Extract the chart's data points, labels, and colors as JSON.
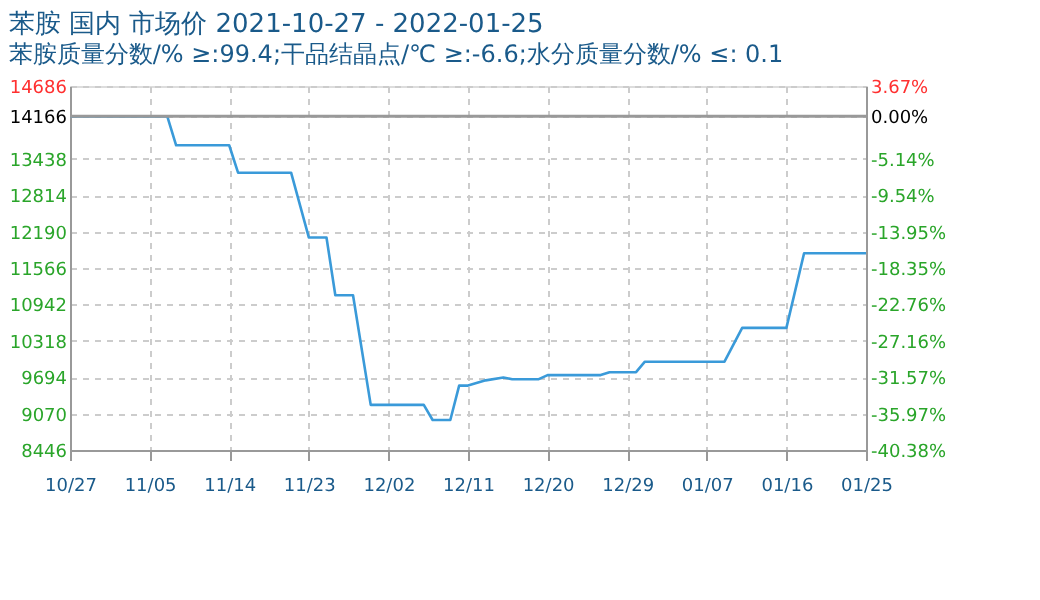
{
  "chart_data": {
    "type": "line",
    "title": "苯胺 国内 市场价 2021-10-27 - 2022-01-25",
    "subtitle": "苯胺质量分数/% ≥:99.4;干品结晶点/℃  ≥:-6.6;水分质量分数/%  ≤: 0.1",
    "x": [
      "2021-10-27",
      "2021-11-07",
      "2021-11-08",
      "2021-11-14",
      "2021-11-15",
      "2021-11-21",
      "2021-11-23",
      "2021-11-25",
      "2021-11-26",
      "2021-11-28",
      "2021-11-30",
      "2021-12-06",
      "2021-12-07",
      "2021-12-09",
      "2021-12-10",
      "2021-12-11",
      "2021-12-13",
      "2021-12-15",
      "2021-12-16",
      "2021-12-19",
      "2021-12-20",
      "2021-12-26",
      "2021-12-27",
      "2021-12-30",
      "2021-12-31",
      "2022-01-09",
      "2022-01-11",
      "2022-01-16",
      "2022-01-18",
      "2022-01-25"
    ],
    "series": [
      {
        "color": "#3a9ad9",
        "values": [
          14166,
          14166,
          13670,
          13670,
          13200,
          13200,
          12090,
          12090,
          11100,
          11100,
          9220,
          9220,
          8960,
          8960,
          9550,
          9550,
          9640,
          9690,
          9660,
          9660,
          9730,
          9730,
          9780,
          9780,
          9960,
          9960,
          10540,
          10540,
          11820,
          11820
        ]
      }
    ],
    "xlim": [
      "2021-10-27",
      "2022-01-25"
    ],
    "xticks": [
      {
        "value": "2021-10-27",
        "label": "10/27"
      },
      {
        "value": "2021-11-05",
        "label": "11/05"
      },
      {
        "value": "2021-11-14",
        "label": "11/14"
      },
      {
        "value": "2021-11-23",
        "label": "11/23"
      },
      {
        "value": "2021-12-02",
        "label": "12/02"
      },
      {
        "value": "2021-12-11",
        "label": "12/11"
      },
      {
        "value": "2021-12-20",
        "label": "12/20"
      },
      {
        "value": "2021-12-29",
        "label": "12/29"
      },
      {
        "value": "2022-01-07",
        "label": "01/07"
      },
      {
        "value": "2022-01-16",
        "label": "01/16"
      },
      {
        "value": "2022-01-25",
        "label": "01/25"
      }
    ],
    "ylim": [
      8446,
      14686
    ],
    "yticks": [
      8446,
      9070,
      9694,
      10318,
      10942,
      11566,
      12190,
      12814,
      13438,
      14166,
      14686
    ],
    "y2lim": [
      -40.38,
      3.67
    ],
    "y2ticks": [
      {
        "value": -40.38,
        "label": "-40.38%"
      },
      {
        "value": -35.97,
        "label": "-35.97%"
      },
      {
        "value": -31.57,
        "label": "-31.57%"
      },
      {
        "value": -27.16,
        "label": "-27.16%"
      },
      {
        "value": -22.76,
        "label": "-22.76%"
      },
      {
        "value": -18.35,
        "label": "-18.35%"
      },
      {
        "value": -13.95,
        "label": "-13.95%"
      },
      {
        "value": -9.54,
        "label": "-9.54%"
      },
      {
        "value": -5.14,
        "label": "-5.14%"
      },
      {
        "value": 0,
        "label": "0.00%"
      },
      {
        "value": 3.67,
        "label": "3.67%"
      }
    ],
    "ref_lines": [
      {
        "axis": "y",
        "value": 14166,
        "color": "#999999"
      }
    ],
    "grid": true
  }
}
